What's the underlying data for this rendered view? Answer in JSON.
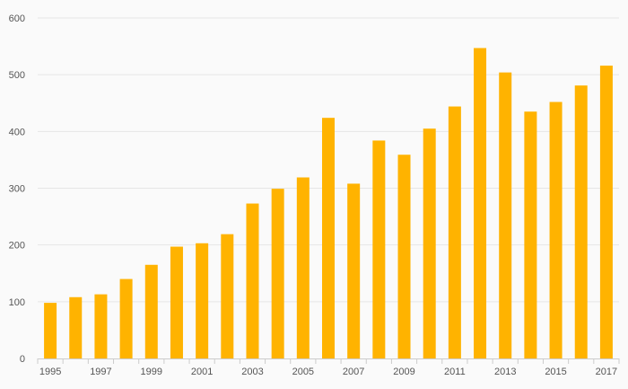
{
  "chart_data": {
    "type": "bar",
    "categories": [
      "1995",
      "1996",
      "1997",
      "1998",
      "1999",
      "2000",
      "2001",
      "2002",
      "2003",
      "2004",
      "2005",
      "2006",
      "2007",
      "2008",
      "2009",
      "2010",
      "2011",
      "2012",
      "2013",
      "2014",
      "2015",
      "2016",
      "2017"
    ],
    "x_tick_labels": [
      "1995",
      "1997",
      "1999",
      "2001",
      "2003",
      "2005",
      "2007",
      "2009",
      "2011",
      "2013",
      "2015",
      "2017"
    ],
    "values": [
      98,
      108,
      113,
      140,
      165,
      197,
      203,
      219,
      273,
      299,
      319,
      424,
      308,
      384,
      359,
      405,
      444,
      547,
      504,
      435,
      452,
      481,
      516
    ],
    "y_ticks": [
      0,
      100,
      200,
      300,
      400,
      500,
      600
    ],
    "ylim": [
      0,
      600
    ],
    "grid": true,
    "legend": "none",
    "colors": {
      "bar": "#FFB300",
      "grid": "#e6e6e6",
      "axis": "#cccccc",
      "background": "#fafafa"
    }
  }
}
